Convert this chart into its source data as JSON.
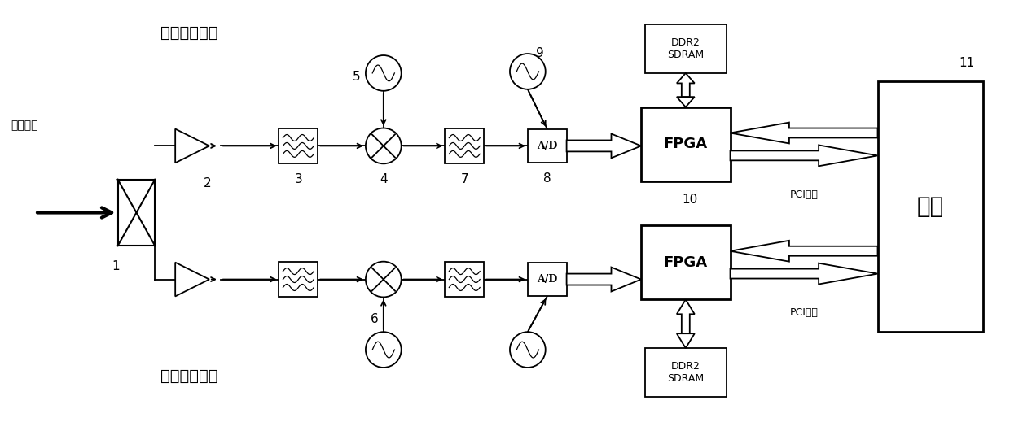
{
  "bg_color": "#ffffff",
  "line_color": "#000000",
  "channel1_label": "第一信号通道",
  "channel2_label": "第二信号通道",
  "signal_input_label": "信号输入",
  "pci_label1": "PCI接口",
  "pci_label2": "PCI接口",
  "fpga_label": "FPGA",
  "ddr2_label": "DDR2\nSDRAM",
  "main_label": "主机",
  "ad_label": "A/D",
  "lw": 1.3,
  "fig_w": 12.4,
  "fig_h": 5.19
}
